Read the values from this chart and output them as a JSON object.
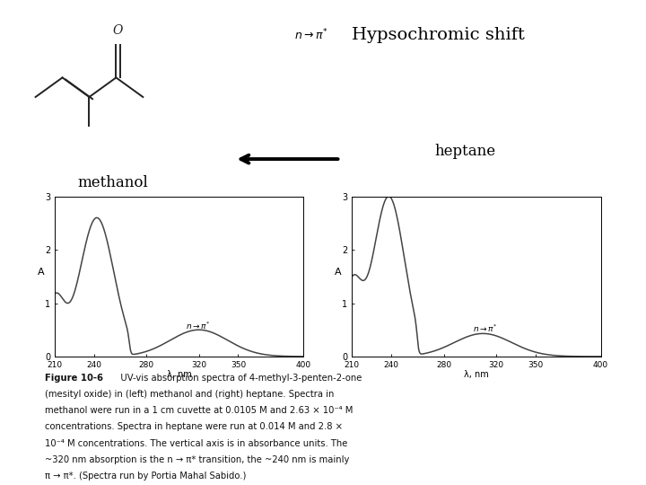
{
  "title": "Hypsochromic shift",
  "label_methanol": "methanol",
  "label_heptane": "heptane",
  "xlabel": "λ, nm",
  "ylabel": "A",
  "xmin": 210,
  "xmax": 400,
  "ymin": 0,
  "ymax": 3,
  "yticks": [
    0,
    1,
    2,
    3
  ],
  "xticks": [
    210,
    240,
    280,
    320,
    350,
    400
  ],
  "bg_color": "#ffffff",
  "line_color": "#444444",
  "caption_bold": "Figure 10-6",
  "caption_text": "  UV-vis absorption spectra of 4-methyl-3-penten-2-one (mesityl oxide) in (left) methanol and (right) heptane. Spectra in methanol were run in a 1 cm cuvette at 0.0105 M and 2.63 × 10⁻⁴ M concentrations. Spectra in heptane were run at 0.014 M and 2.8 × 10⁻⁴ M concentrations. The vertical axis is in absorbance units. The ~320 nm absorption is the n → π* transition, the ~240 nm is mainly π → π*. (Spectra run by Portia Mahal Sabido.)"
}
